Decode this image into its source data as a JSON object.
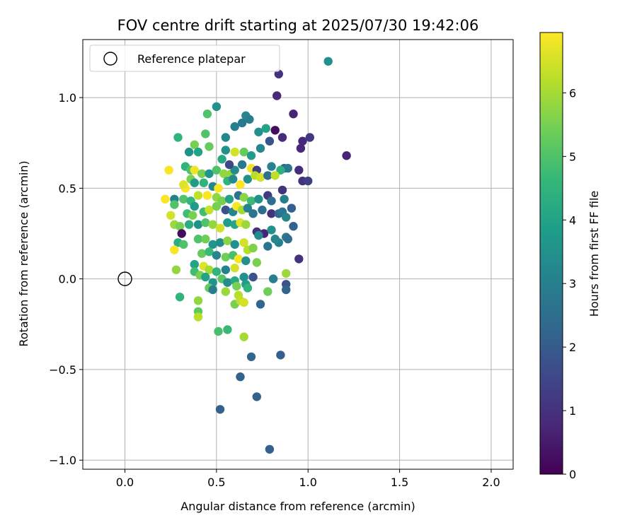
{
  "chart_data": {
    "type": "scatter",
    "title": "FOV centre drift starting at 2025/07/30 19:42:06",
    "xlabel": "Angular distance from reference (arcmin)",
    "ylabel": "Rotation from reference (arcmin)",
    "xlim": [
      -0.23,
      2.12
    ],
    "ylim": [
      -1.05,
      1.32
    ],
    "xticks": [
      0.0,
      0.5,
      1.0,
      1.5,
      2.0
    ],
    "xtick_labels": [
      "0.0",
      "0.5",
      "1.0",
      "1.5",
      "2.0"
    ],
    "yticks": [
      -1.0,
      -0.5,
      0.0,
      0.5,
      1.0
    ],
    "ytick_labels": [
      "−1.0",
      "−0.5",
      "0.0",
      "0.5",
      "1.0"
    ],
    "grid": true,
    "legend": {
      "placement": "top-left",
      "entries": [
        {
          "label": "Reference platepar",
          "marker": "open-circle"
        }
      ]
    },
    "reference_point": {
      "x": 0.0,
      "y": 0.0
    },
    "colorbar": {
      "label": "Hours from first FF file",
      "colormap": "viridis",
      "range": [
        0,
        6.95
      ],
      "ticks": [
        0,
        1,
        2,
        3,
        4,
        5,
        6
      ],
      "tick_labels": [
        "0",
        "1",
        "2",
        "3",
        "4",
        "5",
        "6"
      ]
    },
    "points": [
      [
        1.11,
        1.2,
        3.5
      ],
      [
        0.84,
        1.13,
        1.0
      ],
      [
        0.83,
        1.01,
        0.8
      ],
      [
        0.92,
        0.91,
        0.7
      ],
      [
        0.5,
        0.95,
        3.5
      ],
      [
        0.45,
        0.91,
        5.0
      ],
      [
        0.44,
        0.8,
        5.0
      ],
      [
        0.29,
        0.78,
        4.5
      ],
      [
        0.55,
        0.78,
        3.2
      ],
      [
        0.6,
        0.84,
        3.0
      ],
      [
        0.64,
        0.86,
        2.8
      ],
      [
        0.66,
        0.9,
        3.2
      ],
      [
        0.68,
        0.88,
        3.0
      ],
      [
        0.73,
        0.81,
        3.5
      ],
      [
        0.77,
        0.83,
        4.0
      ],
      [
        0.82,
        0.82,
        0.2
      ],
      [
        0.86,
        0.78,
        0.9
      ],
      [
        0.97,
        0.76,
        0.8
      ],
      [
        1.01,
        0.78,
        1.1
      ],
      [
        0.96,
        0.72,
        0.8
      ],
      [
        1.21,
        0.68,
        0.7
      ],
      [
        0.38,
        0.74,
        5.5
      ],
      [
        0.46,
        0.73,
        5.3
      ],
      [
        0.4,
        0.7,
        4.0
      ],
      [
        0.35,
        0.7,
        3.5
      ],
      [
        0.55,
        0.71,
        3.5
      ],
      [
        0.6,
        0.7,
        6.5
      ],
      [
        0.65,
        0.7,
        5.3
      ],
      [
        0.69,
        0.68,
        3.8
      ],
      [
        0.74,
        0.72,
        3.2
      ],
      [
        0.79,
        0.76,
        1.8
      ],
      [
        0.87,
        0.61,
        2.2
      ],
      [
        0.89,
        0.61,
        2.8
      ],
      [
        0.95,
        0.6,
        0.9
      ],
      [
        0.97,
        0.54,
        1.0
      ],
      [
        1.0,
        0.54,
        1.3
      ],
      [
        0.33,
        0.62,
        4.5
      ],
      [
        0.36,
        0.6,
        5.0
      ],
      [
        0.38,
        0.6,
        6.8
      ],
      [
        0.24,
        0.6,
        6.9
      ],
      [
        0.42,
        0.58,
        5.5
      ],
      [
        0.46,
        0.58,
        3.6
      ],
      [
        0.5,
        0.6,
        5.0
      ],
      [
        0.54,
        0.58,
        5.8
      ],
      [
        0.58,
        0.58,
        5.8
      ],
      [
        0.6,
        0.6,
        3.3
      ],
      [
        0.57,
        0.63,
        1.5
      ],
      [
        0.53,
        0.66,
        4.2
      ],
      [
        0.64,
        0.63,
        2.8
      ],
      [
        0.69,
        0.61,
        6.8
      ],
      [
        0.72,
        0.6,
        1.3
      ],
      [
        0.8,
        0.62,
        3.1
      ],
      [
        0.85,
        0.6,
        4.4
      ],
      [
        0.36,
        0.55,
        5.5
      ],
      [
        0.38,
        0.53,
        3.8
      ],
      [
        0.33,
        0.5,
        6.9
      ],
      [
        0.32,
        0.52,
        6.6
      ],
      [
        0.43,
        0.53,
        4.5
      ],
      [
        0.48,
        0.51,
        3.2
      ],
      [
        0.51,
        0.5,
        6.9
      ],
      [
        0.56,
        0.54,
        4.5
      ],
      [
        0.59,
        0.55,
        3.3
      ],
      [
        0.63,
        0.52,
        6.9
      ],
      [
        0.67,
        0.55,
        3.5
      ],
      [
        0.71,
        0.57,
        6.2
      ],
      [
        0.74,
        0.56,
        6.5
      ],
      [
        0.78,
        0.57,
        2.5
      ],
      [
        0.82,
        0.57,
        6.3
      ],
      [
        0.86,
        0.49,
        1.0
      ],
      [
        0.22,
        0.44,
        6.9
      ],
      [
        0.27,
        0.44,
        3.0
      ],
      [
        0.32,
        0.44,
        5.0
      ],
      [
        0.36,
        0.43,
        4.6
      ],
      [
        0.4,
        0.46,
        6.3
      ],
      [
        0.45,
        0.46,
        6.9
      ],
      [
        0.5,
        0.45,
        5.8
      ],
      [
        0.53,
        0.43,
        5.5
      ],
      [
        0.57,
        0.44,
        4.0
      ],
      [
        0.62,
        0.46,
        2.6
      ],
      [
        0.65,
        0.45,
        5.7
      ],
      [
        0.69,
        0.43,
        4.7
      ],
      [
        0.73,
        0.44,
        3.5
      ],
      [
        0.78,
        0.46,
        1.2
      ],
      [
        0.8,
        0.43,
        2.5
      ],
      [
        0.87,
        0.44,
        3.0
      ],
      [
        0.27,
        0.41,
        5.0
      ],
      [
        0.34,
        0.36,
        4.8
      ],
      [
        0.37,
        0.35,
        5.5
      ],
      [
        0.25,
        0.35,
        6.5
      ],
      [
        0.38,
        0.4,
        3.8
      ],
      [
        0.43,
        0.37,
        4.8
      ],
      [
        0.46,
        0.38,
        6.4
      ],
      [
        0.5,
        0.4,
        5.5
      ],
      [
        0.55,
        0.38,
        1.8
      ],
      [
        0.59,
        0.37,
        3.2
      ],
      [
        0.61,
        0.4,
        6.9
      ],
      [
        0.64,
        0.38,
        6.0
      ],
      [
        0.67,
        0.39,
        3.1
      ],
      [
        0.7,
        0.36,
        2.7
      ],
      [
        0.75,
        0.38,
        2.5
      ],
      [
        0.8,
        0.36,
        1.0
      ],
      [
        0.84,
        0.36,
        2.4
      ],
      [
        0.86,
        0.37,
        2.8
      ],
      [
        0.88,
        0.34,
        3.2
      ],
      [
        0.91,
        0.39,
        2.1
      ],
      [
        0.27,
        0.3,
        5.9
      ],
      [
        0.3,
        0.29,
        5.5
      ],
      [
        0.35,
        0.3,
        4.3
      ],
      [
        0.4,
        0.3,
        3.5
      ],
      [
        0.44,
        0.31,
        5.0
      ],
      [
        0.48,
        0.3,
        5.8
      ],
      [
        0.52,
        0.28,
        6.5
      ],
      [
        0.56,
        0.31,
        3.8
      ],
      [
        0.6,
        0.3,
        4.1
      ],
      [
        0.63,
        0.31,
        6.6
      ],
      [
        0.66,
        0.3,
        5.9
      ],
      [
        0.72,
        0.26,
        1.0
      ],
      [
        0.76,
        0.25,
        0.7
      ],
      [
        0.8,
        0.27,
        3.5
      ],
      [
        0.84,
        0.2,
        3.0
      ],
      [
        0.88,
        0.23,
        2.9
      ],
      [
        0.92,
        0.29,
        2.2
      ],
      [
        0.31,
        0.25,
        0.2
      ],
      [
        0.29,
        0.2,
        4.3
      ],
      [
        0.32,
        0.19,
        5.0
      ],
      [
        0.27,
        0.16,
        6.9
      ],
      [
        0.4,
        0.22,
        5.0
      ],
      [
        0.44,
        0.22,
        5.4
      ],
      [
        0.48,
        0.19,
        3.6
      ],
      [
        0.52,
        0.2,
        3.4
      ],
      [
        0.56,
        0.21,
        5.7
      ],
      [
        0.6,
        0.19,
        3.5
      ],
      [
        0.65,
        0.2,
        6.5
      ],
      [
        0.67,
        0.16,
        6.2
      ],
      [
        0.7,
        0.17,
        5.6
      ],
      [
        0.73,
        0.24,
        3.3
      ],
      [
        0.78,
        0.18,
        2.7
      ],
      [
        0.82,
        0.22,
        3.2
      ],
      [
        0.89,
        0.22,
        2.5
      ],
      [
        0.95,
        0.11,
        1.0
      ],
      [
        0.42,
        0.14,
        5.3
      ],
      [
        0.46,
        0.15,
        4.7
      ],
      [
        0.5,
        0.13,
        3.2
      ],
      [
        0.55,
        0.12,
        5.4
      ],
      [
        0.59,
        0.13,
        4.9
      ],
      [
        0.62,
        0.11,
        6.9
      ],
      [
        0.66,
        0.1,
        3.5
      ],
      [
        0.72,
        0.09,
        5.5
      ],
      [
        0.38,
        0.08,
        4.0
      ],
      [
        0.43,
        0.07,
        6.6
      ],
      [
        0.46,
        0.05,
        6.0
      ],
      [
        0.5,
        0.04,
        4.5
      ],
      [
        0.55,
        0.05,
        3.1
      ],
      [
        0.6,
        0.06,
        6.5
      ],
      [
        0.28,
        0.05,
        5.8
      ],
      [
        0.38,
        0.04,
        4.8
      ],
      [
        0.41,
        0.02,
        5.5
      ],
      [
        0.44,
        0.01,
        4.0
      ],
      [
        0.48,
        -0.02,
        3.6
      ],
      [
        0.53,
        0.0,
        5.1
      ],
      [
        0.56,
        -0.02,
        3.4
      ],
      [
        0.6,
        -0.01,
        4.2
      ],
      [
        0.65,
        0.01,
        3.5
      ],
      [
        0.7,
        0.01,
        1.8
      ],
      [
        0.81,
        0.0,
        3.0
      ],
      [
        0.88,
        0.03,
        5.9
      ],
      [
        0.88,
        -0.03,
        1.8
      ],
      [
        0.88,
        -0.06,
        2.2
      ],
      [
        0.46,
        -0.05,
        5.3
      ],
      [
        0.48,
        -0.06,
        3.0
      ],
      [
        0.55,
        -0.07,
        5.9
      ],
      [
        0.61,
        -0.04,
        5.5
      ],
      [
        0.66,
        -0.03,
        3.8
      ],
      [
        0.67,
        -0.05,
        4.5
      ],
      [
        0.78,
        -0.07,
        5.4
      ],
      [
        0.62,
        -0.09,
        6.2
      ],
      [
        0.3,
        -0.1,
        4.5
      ],
      [
        0.4,
        -0.12,
        5.8
      ],
      [
        0.6,
        -0.14,
        5.5
      ],
      [
        0.63,
        -0.12,
        6.3
      ],
      [
        0.74,
        -0.14,
        2.3
      ],
      [
        0.65,
        -0.13,
        6.5
      ],
      [
        0.4,
        -0.18,
        5.2
      ],
      [
        0.4,
        -0.21,
        6.2
      ],
      [
        0.51,
        -0.29,
        4.9
      ],
      [
        0.56,
        -0.28,
        4.7
      ],
      [
        0.65,
        -0.32,
        6.0
      ],
      [
        0.69,
        -0.43,
        2.3
      ],
      [
        0.85,
        -0.42,
        2.1
      ],
      [
        0.63,
        -0.54,
        2.2
      ],
      [
        0.72,
        -0.65,
        2.2
      ],
      [
        0.52,
        -0.72,
        2.2
      ],
      [
        0.79,
        -0.94,
        2.1
      ]
    ]
  }
}
